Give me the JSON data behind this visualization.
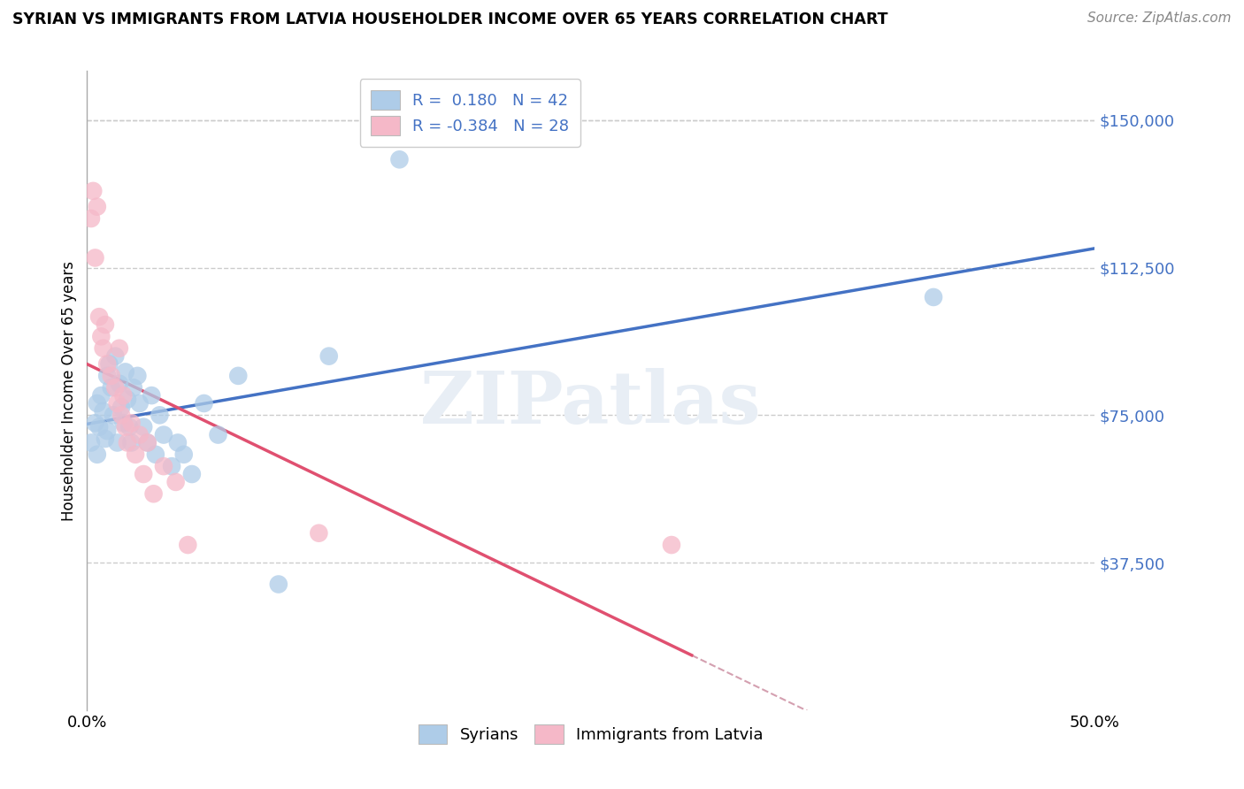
{
  "title": "SYRIAN VS IMMIGRANTS FROM LATVIA HOUSEHOLDER INCOME OVER 65 YEARS CORRELATION CHART",
  "source": "Source: ZipAtlas.com",
  "ylabel": "Householder Income Over 65 years",
  "xlim": [
    0.0,
    0.5
  ],
  "ylim": [
    0,
    162500
  ],
  "yticks": [
    37500,
    75000,
    112500,
    150000
  ],
  "ytick_labels": [
    "$37,500",
    "$75,000",
    "$112,500",
    "$150,000"
  ],
  "watermark": "ZIPatlas",
  "syrians_color": "#aecce8",
  "latvia_color": "#f5b8c8",
  "syrians_line_color": "#4472c4",
  "latvia_line_color": "#e05070",
  "latvia_line_dashed_color": "#d4a0b0",
  "syrians_r": 0.18,
  "syrians_n": 42,
  "latvia_r": -0.384,
  "latvia_n": 28,
  "syrians_x": [
    0.002,
    0.004,
    0.005,
    0.005,
    0.006,
    0.007,
    0.008,
    0.009,
    0.01,
    0.01,
    0.011,
    0.012,
    0.013,
    0.014,
    0.015,
    0.016,
    0.017,
    0.018,
    0.019,
    0.02,
    0.021,
    0.022,
    0.023,
    0.025,
    0.026,
    0.028,
    0.03,
    0.032,
    0.034,
    0.036,
    0.038,
    0.042,
    0.045,
    0.048,
    0.052,
    0.058,
    0.065,
    0.075,
    0.095,
    0.12,
    0.155,
    0.42
  ],
  "syrians_y": [
    68000,
    73000,
    65000,
    78000,
    72000,
    80000,
    76000,
    69000,
    85000,
    71000,
    88000,
    82000,
    75000,
    90000,
    68000,
    83000,
    77000,
    73000,
    86000,
    79000,
    72000,
    68000,
    82000,
    85000,
    78000,
    72000,
    68000,
    80000,
    65000,
    75000,
    70000,
    62000,
    68000,
    65000,
    60000,
    78000,
    70000,
    85000,
    32000,
    90000,
    140000,
    105000
  ],
  "latvia_x": [
    0.002,
    0.003,
    0.004,
    0.005,
    0.006,
    0.007,
    0.008,
    0.009,
    0.01,
    0.012,
    0.014,
    0.015,
    0.016,
    0.017,
    0.018,
    0.019,
    0.02,
    0.022,
    0.024,
    0.026,
    0.028,
    0.03,
    0.033,
    0.038,
    0.044,
    0.05,
    0.115,
    0.29
  ],
  "latvia_y": [
    125000,
    132000,
    115000,
    128000,
    100000,
    95000,
    92000,
    98000,
    88000,
    85000,
    82000,
    78000,
    92000,
    75000,
    80000,
    72000,
    68000,
    73000,
    65000,
    70000,
    60000,
    68000,
    55000,
    62000,
    58000,
    42000,
    45000,
    42000
  ]
}
